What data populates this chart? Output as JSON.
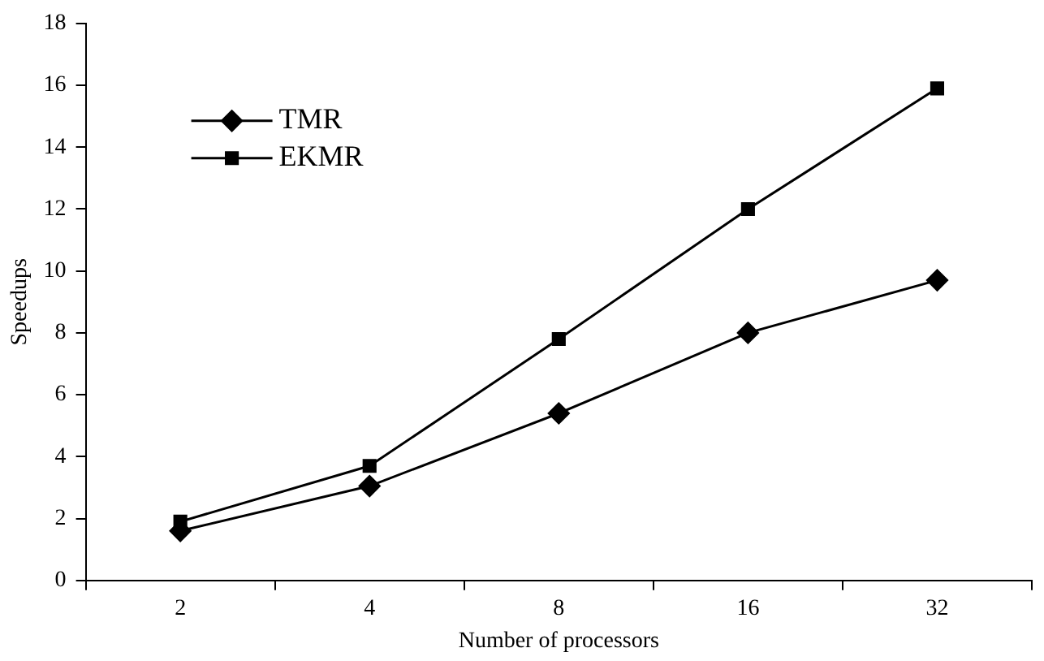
{
  "chart_data": {
    "type": "line",
    "xlabel": "Number of processors",
    "ylabel": "Speedups",
    "categories": [
      "2",
      "4",
      "8",
      "16",
      "32"
    ],
    "series": [
      {
        "name": "TMR",
        "color": "#000000",
        "marker": "diamond",
        "values": [
          1.6,
          3.05,
          5.4,
          8.0,
          9.7
        ]
      },
      {
        "name": "EKMR",
        "color": "#000000",
        "marker": "square",
        "values": [
          1.9,
          3.7,
          7.8,
          12.0,
          15.9
        ]
      }
    ],
    "ylim": [
      0,
      18
    ],
    "yticks": [
      0,
      2,
      4,
      6,
      8,
      10,
      12,
      14,
      16,
      18
    ],
    "grid": false,
    "legend": "top left",
    "line_style": "solid"
  }
}
